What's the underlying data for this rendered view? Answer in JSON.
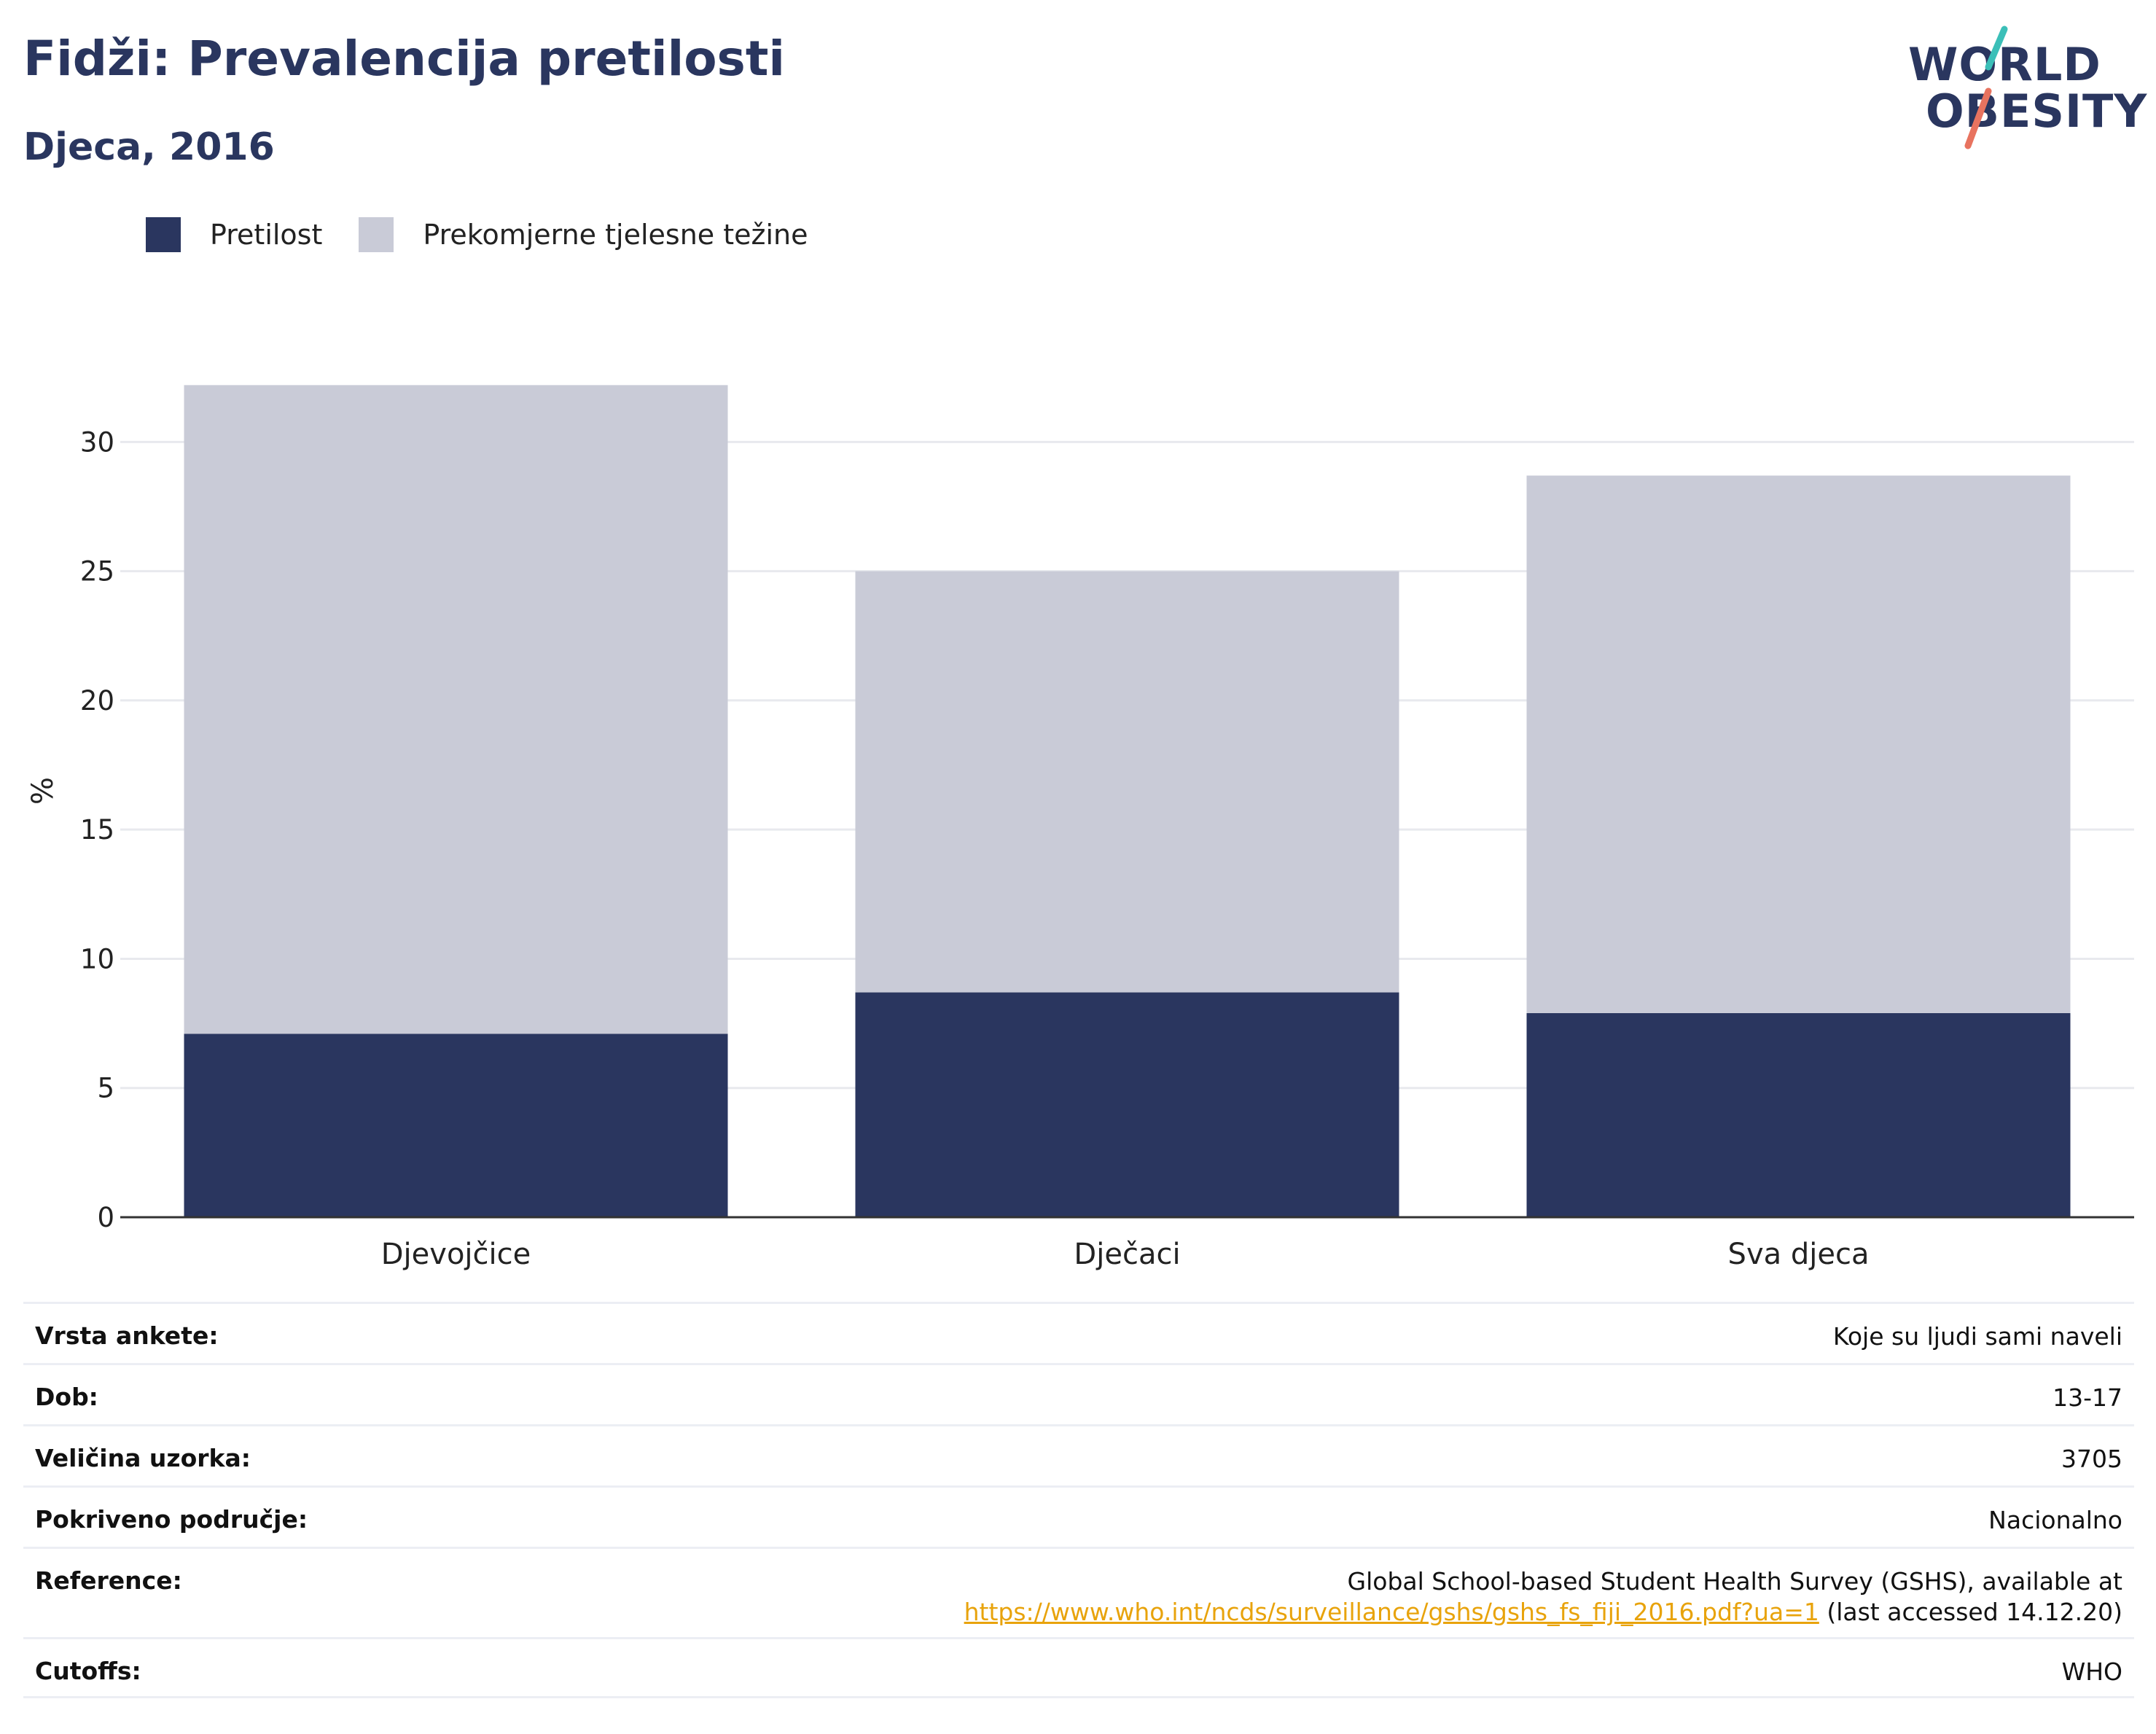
{
  "header": {
    "title": "Fidži: Prevalencija pretilosti",
    "subtitle": "Djeca, 2016"
  },
  "logo": {
    "line1": "WORLD",
    "line2": "OBESITY"
  },
  "colors": {
    "obesity": "#2a365f",
    "overweight": "#c9cbd7",
    "title": "#2a365f",
    "link": "#e8a30c",
    "logo_teal": "#3bbfb8",
    "logo_coral": "#e8735f"
  },
  "chart_data": {
    "type": "bar",
    "stacked": true,
    "categories": [
      "Djevojčice",
      "Dječaci",
      "Sva djeca"
    ],
    "series": [
      {
        "name": "Pretilost",
        "values": [
          7.1,
          8.7,
          7.9
        ],
        "color": "#2a365f"
      },
      {
        "name": "Prekomjerne tjelesne težine",
        "values": [
          25.1,
          16.3,
          20.8
        ],
        "color": "#c9cbd7"
      }
    ],
    "ylabel": "%",
    "ylim": [
      0,
      33
    ],
    "yticks": [
      0,
      5,
      10,
      15,
      20,
      25,
      30
    ],
    "grid": true,
    "legend_position": "top-left"
  },
  "info": [
    {
      "key": "Vrsta ankete:",
      "value": "Koje su ljudi sami naveli"
    },
    {
      "key": "Dob:",
      "value": "13-17"
    },
    {
      "key": "Veličina uzorka:",
      "value": "3705"
    },
    {
      "key": "Pokriveno područje:",
      "value": "Nacionalno"
    },
    {
      "key": "Reference:",
      "value_line1": "Global School-based Student Health Survey (GSHS), available at",
      "link": "https://www.who.int/ncds/surveillance/gshs/gshs_fs_fiji_2016.pdf?ua=1",
      "value_suffix": " (last accessed 14.12.20)"
    },
    {
      "key": "Cutoffs:",
      "value": "WHO"
    }
  ]
}
